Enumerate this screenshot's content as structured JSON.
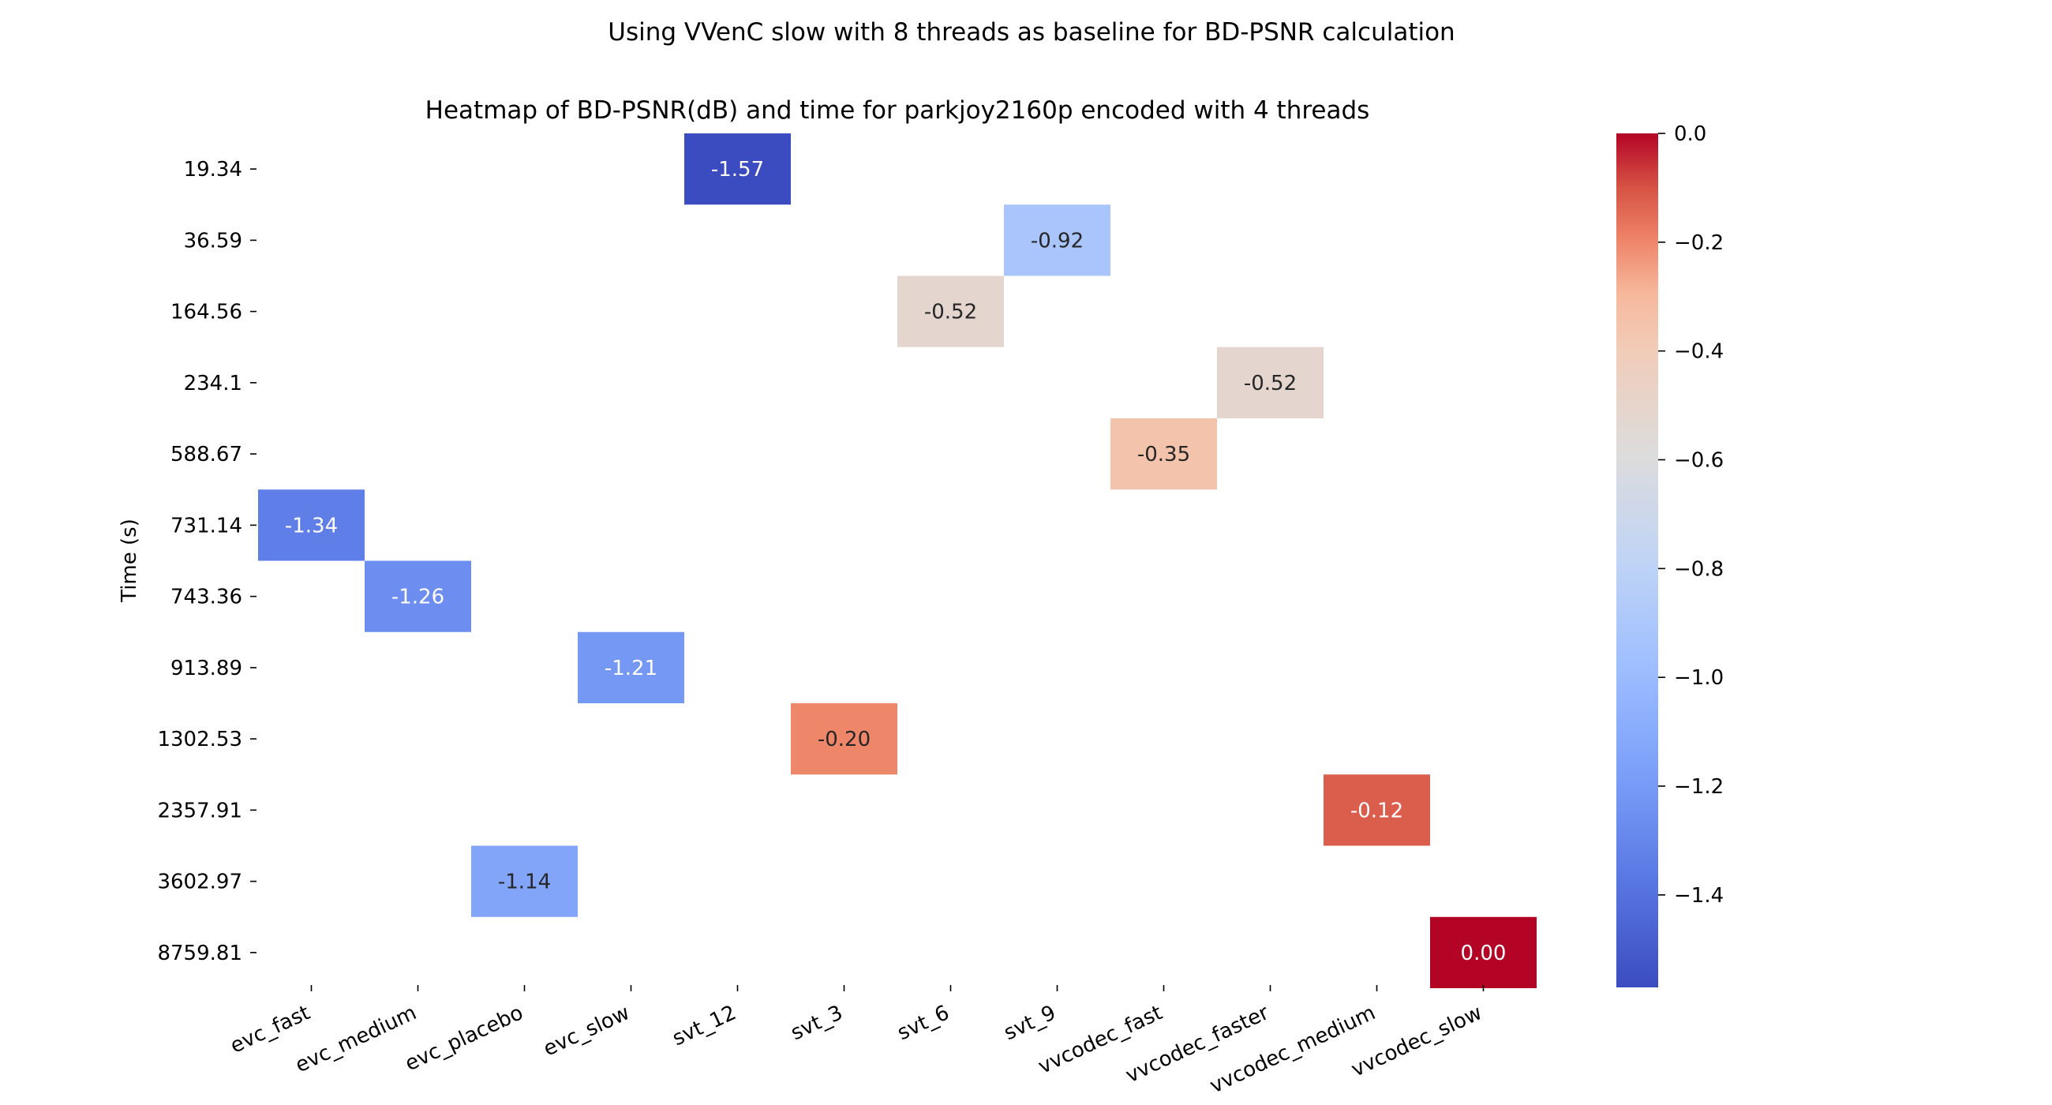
{
  "chart_data": {
    "type": "heatmap",
    "suptitle": "Using VVenC slow with 8 threads as baseline for BD-PSNR calculation",
    "title": "Heatmap of BD-PSNR(dB) and time for parkjoy2160p encoded with 4 threads",
    "ylabel": "Time (s)",
    "xlabel": "",
    "x_categories": [
      "evc_fast",
      "evc_medium",
      "evc_placebo",
      "evc_slow",
      "svt_12",
      "svt_3",
      "svt_6",
      "svt_9",
      "vvcodec_fast",
      "vvcodec_faster",
      "vvcodec_medium",
      "vvcodec_slow"
    ],
    "y_categories": [
      "19.34",
      "36.59",
      "164.56",
      "234.1",
      "588.67",
      "731.14",
      "743.36",
      "913.89",
      "1302.53",
      "2357.91",
      "3602.97",
      "8759.81"
    ],
    "cells": [
      {
        "x": "svt_12",
        "y": "19.34",
        "value": -1.57,
        "label": "-1.57"
      },
      {
        "x": "svt_9",
        "y": "36.59",
        "value": -0.92,
        "label": "-0.92"
      },
      {
        "x": "svt_6",
        "y": "164.56",
        "value": -0.52,
        "label": "-0.52"
      },
      {
        "x": "vvcodec_faster",
        "y": "234.1",
        "value": -0.52,
        "label": "-0.52"
      },
      {
        "x": "vvcodec_fast",
        "y": "588.67",
        "value": -0.35,
        "label": "-0.35"
      },
      {
        "x": "evc_fast",
        "y": "731.14",
        "value": -1.34,
        "label": "-1.34"
      },
      {
        "x": "evc_medium",
        "y": "743.36",
        "value": -1.26,
        "label": "-1.26"
      },
      {
        "x": "evc_slow",
        "y": "913.89",
        "value": -1.21,
        "label": "-1.21"
      },
      {
        "x": "svt_3",
        "y": "1302.53",
        "value": -0.2,
        "label": "-0.20"
      },
      {
        "x": "vvcodec_medium",
        "y": "2357.91",
        "value": -0.12,
        "label": "-0.12"
      },
      {
        "x": "evc_placebo",
        "y": "3602.97",
        "value": -1.14,
        "label": "-1.14"
      },
      {
        "x": "vvcodec_slow",
        "y": "8759.81",
        "value": 0.0,
        "label": "0.00"
      }
    ],
    "colormap": "coolwarm",
    "vmin": -1.57,
    "vmax": 0.0,
    "colorbar_ticks": [
      "0.0",
      "−0.2",
      "−0.4",
      "−0.6",
      "−0.8",
      "−1.0",
      "−1.2",
      "−1.4"
    ],
    "colorbar_tick_values": [
      0.0,
      -0.2,
      -0.4,
      -0.6,
      -0.8,
      -1.0,
      -1.2,
      -1.4
    ],
    "colors": {
      "low": "#3b4cc0",
      "mid": "#dddcdc",
      "high": "#b40426"
    }
  }
}
